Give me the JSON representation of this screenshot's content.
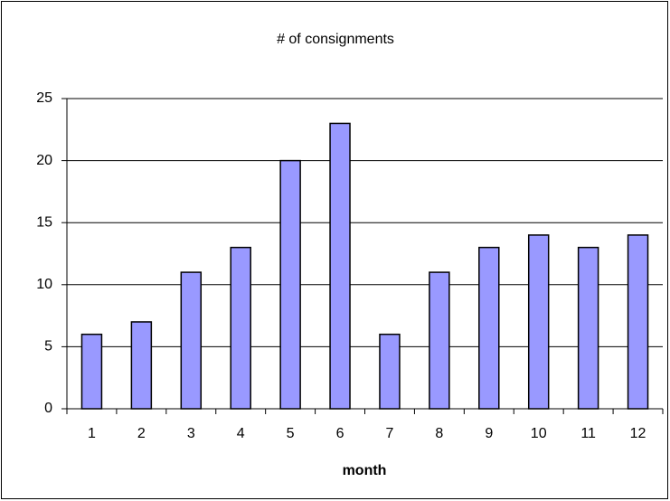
{
  "chart_data": {
    "type": "bar",
    "title": "# of consignments",
    "x_label": "month",
    "categories": [
      "1",
      "2",
      "3",
      "4",
      "5",
      "6",
      "7",
      "8",
      "9",
      "10",
      "11",
      "12"
    ],
    "values": [
      6,
      7,
      11,
      13,
      20,
      23,
      6,
      11,
      13,
      14,
      13,
      14
    ],
    "color": "#9999ff",
    "edge_color": "#000000",
    "ylim": [
      0,
      25
    ],
    "yticks": [
      0,
      5,
      10,
      15,
      20,
      25
    ],
    "grid": true
  }
}
